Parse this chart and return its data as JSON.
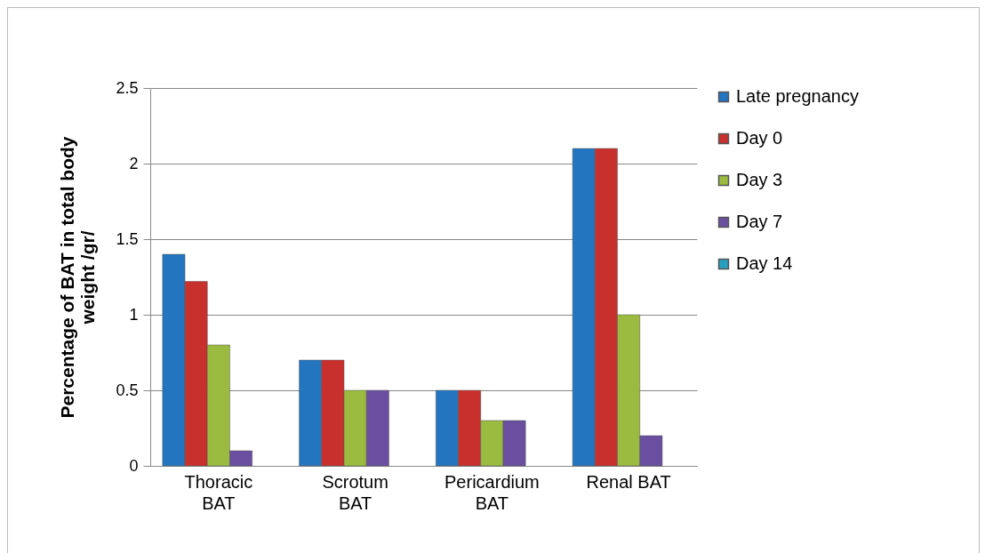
{
  "chart_data": {
    "type": "bar",
    "ylabel": "Percentage of BAT in total body weight /gr/",
    "categories": [
      "Thoracic BAT",
      "Scrotum BAT",
      "Pericardium BAT",
      "Renal BAT"
    ],
    "series": [
      {
        "name": "Late pregnancy",
        "color": "#2375c0",
        "values": [
          1.4,
          0.7,
          0.5,
          2.1
        ]
      },
      {
        "name": "Day 0",
        "color": "#c8302e",
        "values": [
          1.22,
          0.7,
          0.5,
          2.1
        ]
      },
      {
        "name": "Day 3",
        "color": "#9bbb40",
        "values": [
          0.8,
          0.5,
          0.3,
          1.0
        ]
      },
      {
        "name": "Day 7",
        "color": "#6a4fa0",
        "values": [
          0.1,
          0.5,
          0.3,
          0.2
        ]
      },
      {
        "name": "Day 14",
        "color": "#28a0c0",
        "values": [
          null,
          null,
          null,
          null
        ]
      }
    ],
    "ylim": [
      0,
      2.5
    ],
    "yticks": [
      0,
      0.5,
      1,
      1.5,
      2,
      2.5
    ],
    "grid": "y",
    "legend": "right"
  }
}
